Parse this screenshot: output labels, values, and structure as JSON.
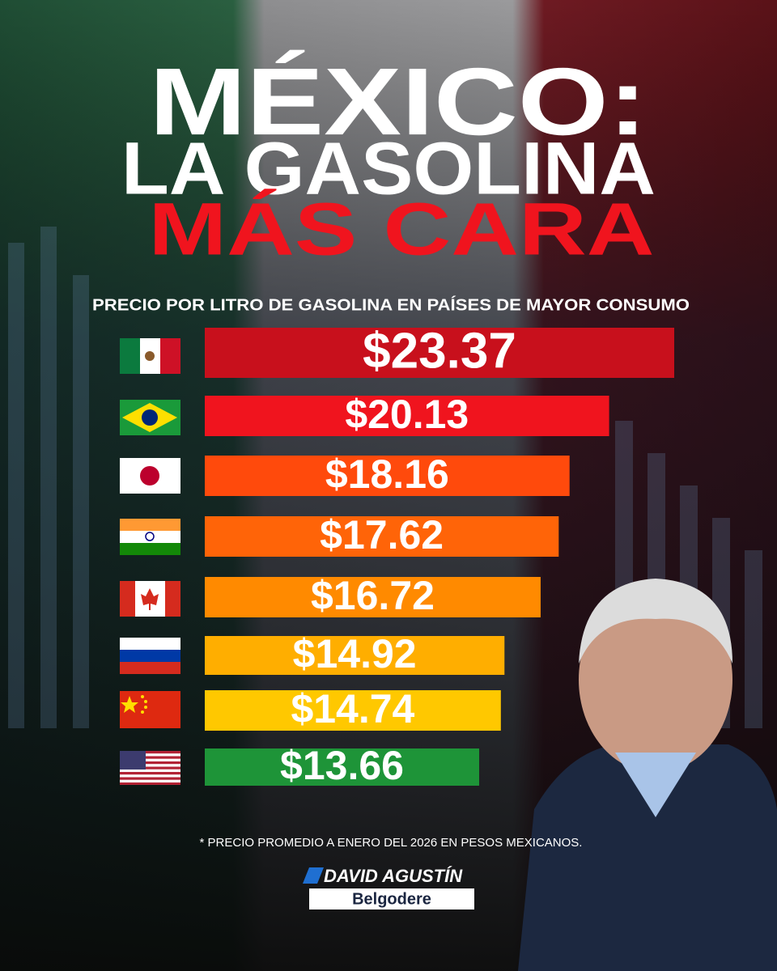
{
  "chart_data": {
    "type": "hbar",
    "title": [
      "MÉXICO:",
      "LA GASOLINA",
      "MÁS CARA"
    ],
    "subtitle": "PRECIO POR LITRO  DE GASOLINA EN PAÍSES DE MAYOR CONSUMO",
    "categories": [
      null,
      null,
      null,
      null,
      null,
      null,
      null,
      null
    ],
    "values": [
      23.37,
      20.13,
      18.16,
      17.62,
      16.72,
      14.92,
      14.74,
      13.66
    ],
    "value_labels": [
      "$23.37",
      "$20.13",
      "$18.16",
      "$17.62",
      "$16.72",
      "$14.92",
      "$14.74",
      "$13.66"
    ],
    "colors": [
      "#c8101c",
      "#f0141e",
      "#ff4a0c",
      "#ff6408",
      "#ff8a00",
      "#ffae00",
      "#ffc800",
      "#1e9438"
    ],
    "note": "* PRECIO PROMEDIO A ENERO DEL 2026 EN PESOS MEXICANOS."
  },
  "brand": {
    "name": "DAVID AGUSTÍN",
    "surname": "Belgodere"
  }
}
